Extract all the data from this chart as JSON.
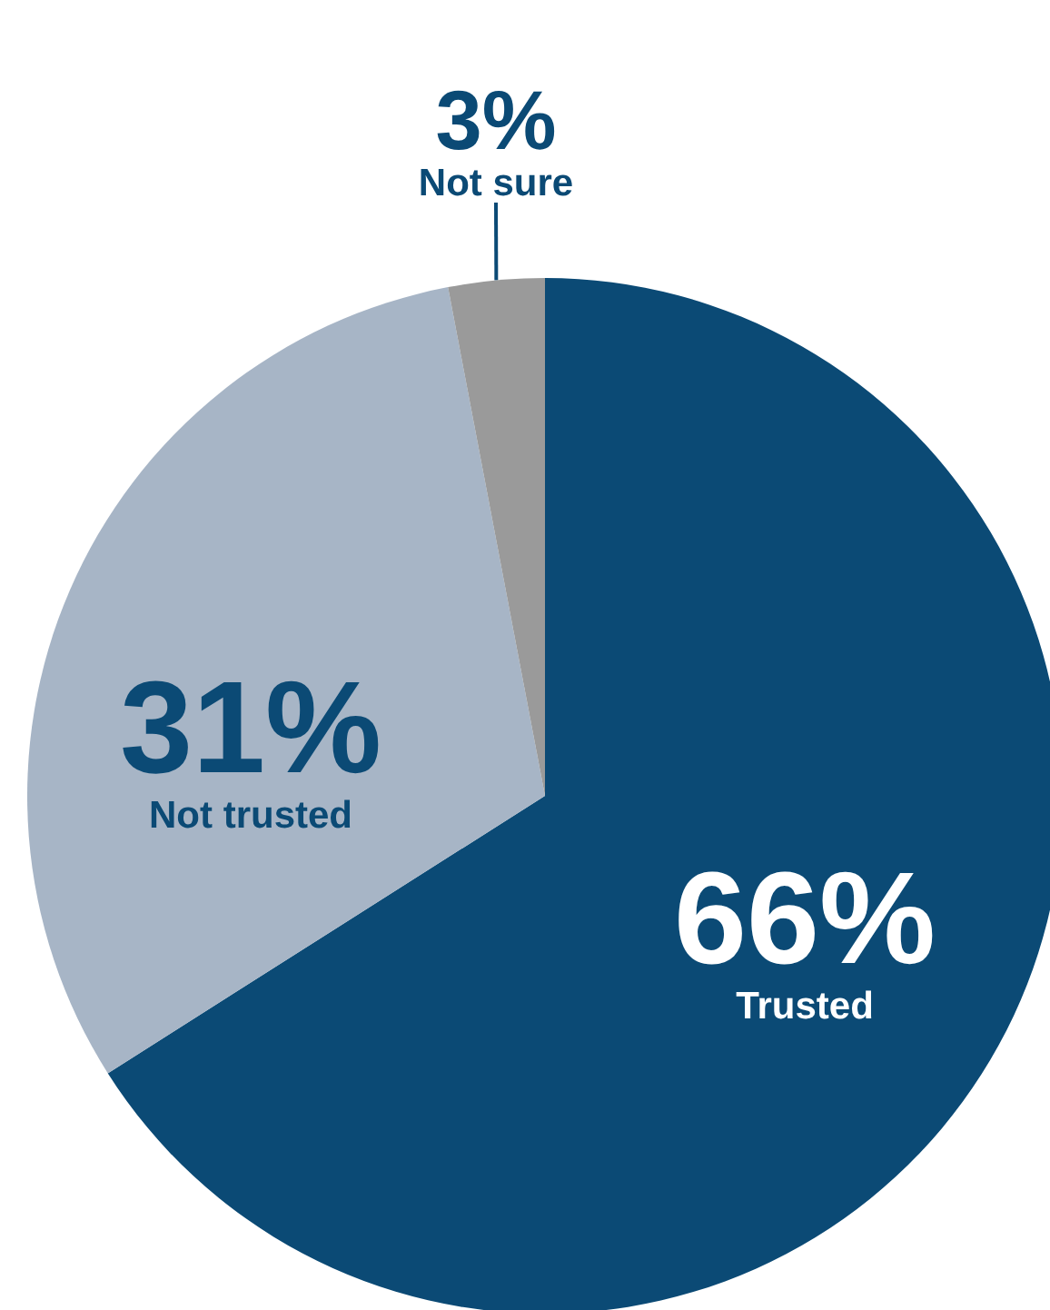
{
  "chart_data": {
    "type": "pie",
    "categories": [
      "Trusted",
      "Not trusted",
      "Not sure"
    ],
    "values": [
      66,
      31,
      3
    ],
    "value_labels": [
      "66%",
      "31%",
      "3%"
    ],
    "colors": [
      "#0b4a75",
      "#a7b5c6",
      "#9a9a9a"
    ],
    "legend": false
  }
}
